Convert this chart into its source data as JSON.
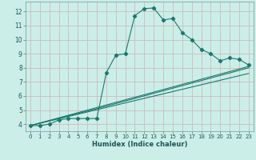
{
  "xlabel": "Humidex (Indice chaleur)",
  "bg_color": "#cceee8",
  "grid_color": "#ccbbbb",
  "line_color": "#1a7a6e",
  "xlim": [
    -0.5,
    23.5
  ],
  "ylim": [
    3.5,
    12.7
  ],
  "xticks": [
    0,
    1,
    2,
    3,
    4,
    5,
    6,
    7,
    8,
    9,
    10,
    11,
    12,
    13,
    14,
    15,
    16,
    17,
    18,
    19,
    20,
    21,
    22,
    23
  ],
  "yticks": [
    4,
    5,
    6,
    7,
    8,
    9,
    10,
    11,
    12
  ],
  "series1_x": [
    0,
    1,
    2,
    3,
    4,
    5,
    6,
    7,
    8,
    9,
    10,
    11,
    12,
    13,
    14,
    15,
    16,
    17,
    18,
    19,
    20,
    21,
    22,
    23
  ],
  "series1_y": [
    3.9,
    3.9,
    4.0,
    4.3,
    4.4,
    4.4,
    4.4,
    4.4,
    7.65,
    8.9,
    9.0,
    11.7,
    12.2,
    12.25,
    11.4,
    11.5,
    10.5,
    10.0,
    9.3,
    9.0,
    8.5,
    8.7,
    8.6,
    8.2
  ],
  "series2_x": [
    0,
    23
  ],
  "series2_y": [
    3.9,
    8.1
  ],
  "series3_x": [
    0,
    23
  ],
  "series3_y": [
    3.9,
    7.6
  ],
  "series4_x": [
    0,
    7,
    23
  ],
  "series4_y": [
    3.9,
    5.1,
    8.0
  ]
}
